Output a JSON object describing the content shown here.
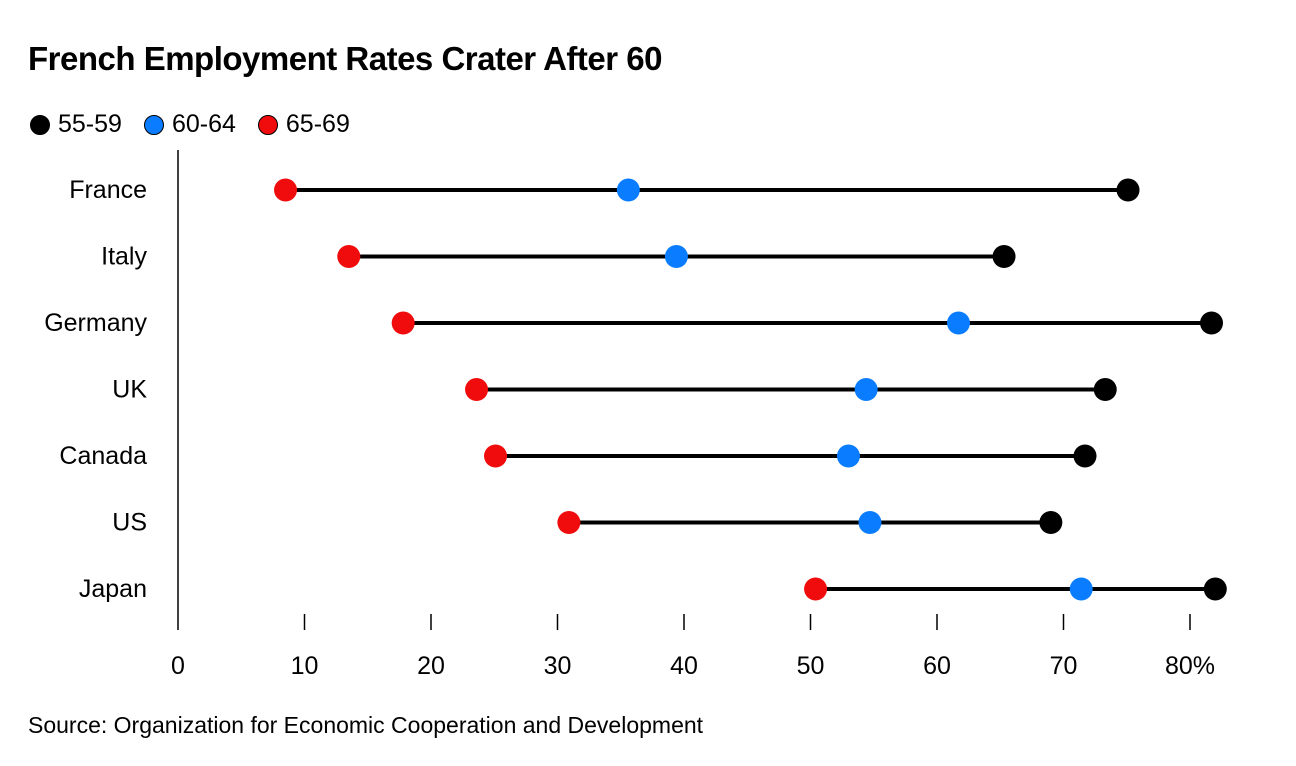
{
  "chart_data": {
    "type": "dumbbell",
    "title": "French Employment Rates Crater After 60",
    "xlabel": "",
    "ylabel": "",
    "xlim": [
      0,
      82
    ],
    "x_ticks": [
      0,
      10,
      20,
      30,
      40,
      50,
      60,
      70,
      80
    ],
    "x_tick_labels": [
      "0",
      "10",
      "20",
      "30",
      "40",
      "50",
      "60",
      "70",
      "80%"
    ],
    "grid": false,
    "legend_position": "top-left",
    "categories": [
      "France",
      "Italy",
      "Germany",
      "UK",
      "Canada",
      "US",
      "Japan"
    ],
    "series": [
      {
        "name": "55-59",
        "color": "#000000",
        "values": [
          75.1,
          65.3,
          81.7,
          73.3,
          71.7,
          69.0,
          82.0
        ]
      },
      {
        "name": "60-64",
        "color": "#0a7cff",
        "values": [
          35.6,
          39.4,
          61.7,
          54.4,
          53.0,
          54.7,
          71.4
        ]
      },
      {
        "name": "65-69",
        "color": "#f00c0c",
        "values": [
          8.5,
          13.5,
          17.8,
          23.6,
          25.1,
          30.9,
          50.4
        ]
      }
    ],
    "source": "Source: Organization for Economic Cooperation and Development"
  }
}
